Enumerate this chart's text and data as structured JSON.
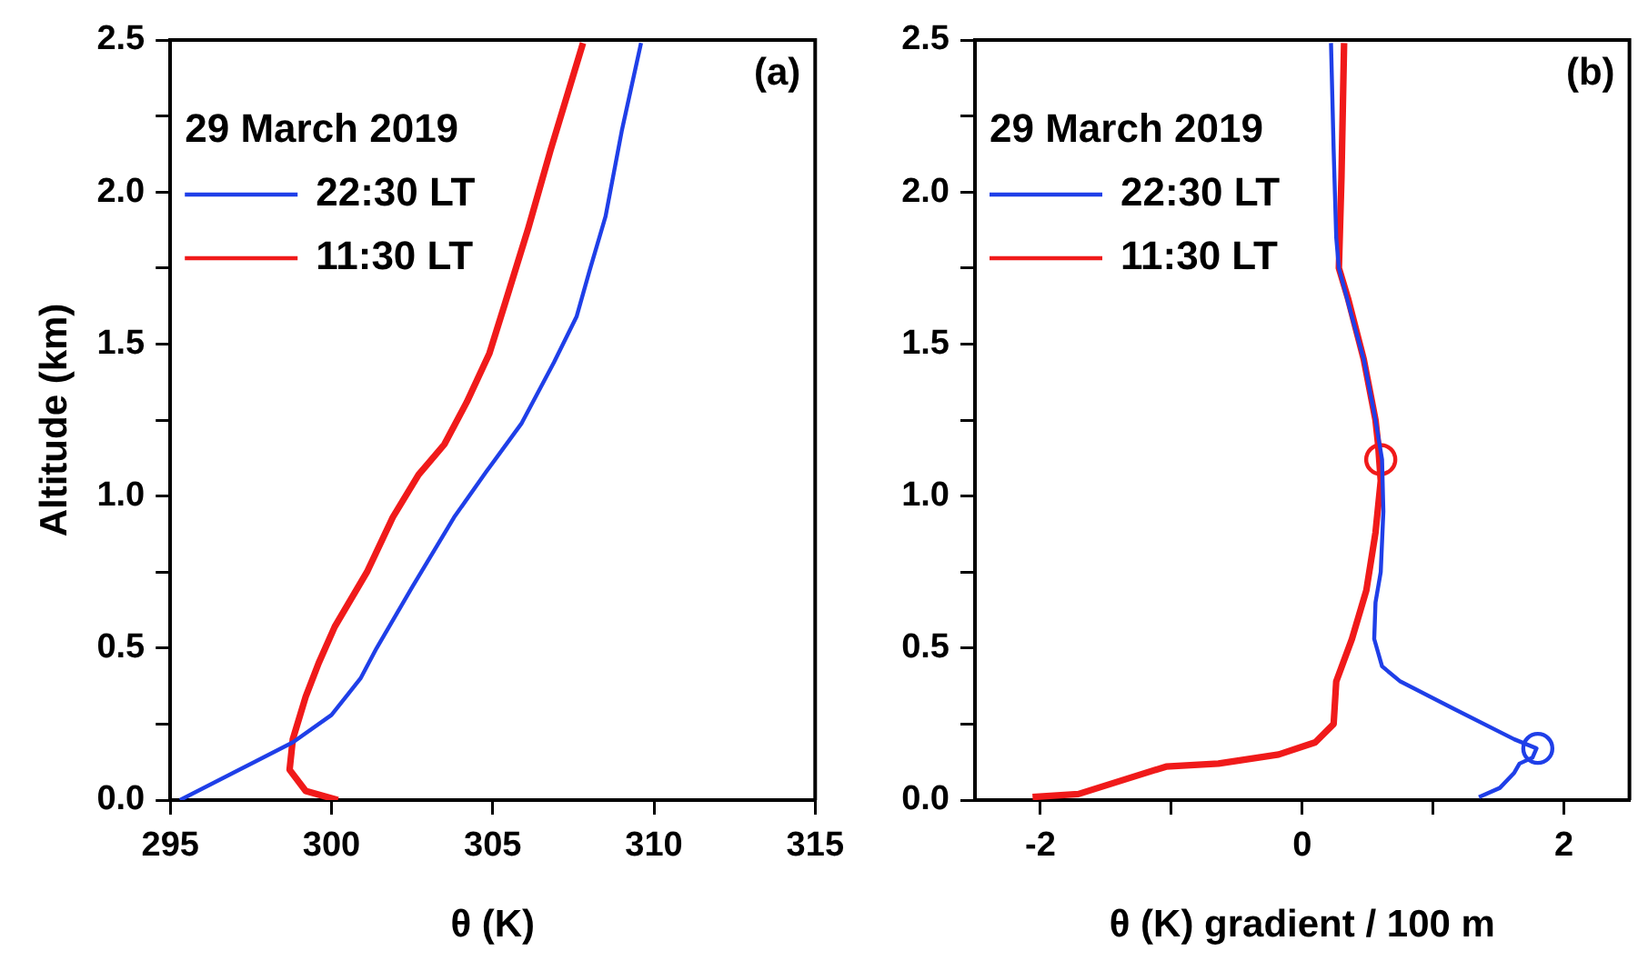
{
  "chart_data": [
    {
      "type": "line",
      "xlabel": "θ (K)",
      "ylabel": "Altitude (km)",
      "legend_title": "29 March 2019",
      "legend": "top left",
      "marker": "none",
      "line_style": "solid",
      "grid": false,
      "annotations": [
        "(a)"
      ],
      "xlim": [
        295,
        315
      ],
      "xticks": [
        295,
        300,
        305,
        310,
        315
      ],
      "ylim": [
        0,
        2.5
      ],
      "yticks": [
        {
          "value": 0,
          "label": "0.0"
        },
        {
          "value": 0.25,
          "label": null
        },
        {
          "value": 0.5,
          "label": "0.5"
        },
        {
          "value": 0.75,
          "label": null
        },
        {
          "value": 1,
          "label": "1.0"
        },
        {
          "value": 1.25,
          "label": null
        },
        {
          "value": 1.5,
          "label": "1.5"
        },
        {
          "value": 1.75,
          "label": null
        },
        {
          "value": 2,
          "label": "2.0"
        },
        {
          "value": 2.25,
          "label": null
        },
        {
          "value": 2.5,
          "label": "2.5"
        }
      ],
      "series": [
        {
          "name": "22:30 LT",
          "color": "#1f3fe8",
          "x": [
            295.3,
            297.7,
            298.8,
            300.0,
            300.9,
            301.4,
            302.5,
            303.8,
            304.8,
            305.9,
            306.9,
            307.6,
            308.0,
            308.5,
            309.0,
            309.6
          ],
          "values": [
            0.0,
            0.13,
            0.19,
            0.28,
            0.4,
            0.5,
            0.7,
            0.93,
            1.08,
            1.24,
            1.44,
            1.59,
            1.74,
            1.92,
            2.2,
            2.49
          ]
        },
        {
          "name": "11:30 LT",
          "color": "#f01a1a",
          "x": [
            300.2,
            299.2,
            298.7,
            298.8,
            299.2,
            299.6,
            300.1,
            301.1,
            301.9,
            302.7,
            303.5,
            304.2,
            304.9,
            305.4,
            306.1,
            306.8,
            307.8
          ],
          "values": [
            0.0,
            0.03,
            0.1,
            0.2,
            0.34,
            0.45,
            0.57,
            0.75,
            0.93,
            1.07,
            1.17,
            1.31,
            1.47,
            1.64,
            1.88,
            2.14,
            2.49
          ]
        }
      ]
    },
    {
      "type": "line",
      "xlabel": "θ (K) gradient / 100 m",
      "legend_title": "29 March 2019",
      "legend": "top left",
      "marker": "none",
      "line_style": "solid",
      "grid": false,
      "annotations": [
        "(b)"
      ],
      "xlim": [
        -2.5,
        2.5
      ],
      "xticks": [
        -2,
        {
          "value": -1,
          "label": null
        },
        0,
        {
          "value": 1,
          "label": null
        },
        2
      ],
      "ylim": [
        0,
        2.5
      ],
      "yticks": [
        {
          "value": 0,
          "label": "0.0"
        },
        {
          "value": 0.25,
          "label": null
        },
        {
          "value": 0.5,
          "label": "0.5"
        },
        {
          "value": 0.75,
          "label": null
        },
        {
          "value": 1,
          "label": "1.0"
        },
        {
          "value": 1.25,
          "label": null
        },
        {
          "value": 1.5,
          "label": "1.5"
        },
        {
          "value": 1.75,
          "label": null
        },
        {
          "value": 2,
          "label": "2.0"
        },
        {
          "value": 2.25,
          "label": null
        },
        {
          "value": 2.5,
          "label": "2.5"
        }
      ],
      "series": [
        {
          "name": "22:30 LT",
          "color": "#1f3fe8",
          "x": [
            1.35,
            1.51,
            1.62,
            1.66,
            1.76,
            1.79,
            1.62,
            1.16,
            0.75,
            0.61,
            0.55,
            0.56,
            0.6,
            0.62,
            0.61,
            0.56,
            0.47,
            0.38,
            0.28,
            0.26,
            0.24,
            0.22
          ],
          "values": [
            0.01,
            0.04,
            0.09,
            0.12,
            0.14,
            0.17,
            0.2,
            0.3,
            0.39,
            0.44,
            0.53,
            0.65,
            0.75,
            0.95,
            1.12,
            1.25,
            1.45,
            1.59,
            1.75,
            1.85,
            2.14,
            2.49
          ]
        },
        {
          "name": "11:30 LT",
          "color": "#f01a1a",
          "x": [
            -2.06,
            -1.71,
            -1.34,
            -1.04,
            -0.64,
            -0.18,
            0.1,
            0.24,
            0.26,
            0.38,
            0.49,
            0.56,
            0.6,
            0.58,
            0.56,
            0.47,
            0.35,
            0.28,
            0.3,
            0.32
          ],
          "values": [
            0.01,
            0.02,
            0.07,
            0.11,
            0.12,
            0.15,
            0.19,
            0.25,
            0.39,
            0.53,
            0.69,
            0.88,
            1.05,
            1.17,
            1.25,
            1.45,
            1.65,
            1.75,
            2.05,
            2.49
          ]
        },
        {
          "type": "scatter",
          "marker": "circle",
          "color": "#f01a1a",
          "x": [
            0.6
          ],
          "values": [
            1.12
          ]
        },
        {
          "type": "scatter",
          "marker": "circle",
          "color": "#1f3fe8",
          "x": [
            1.8
          ],
          "values": [
            0.17
          ]
        }
      ]
    }
  ]
}
